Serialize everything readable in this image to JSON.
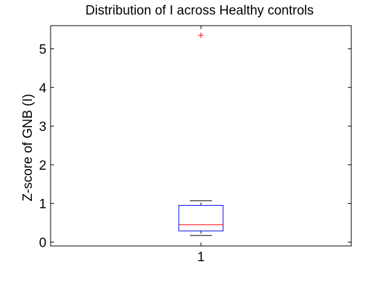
{
  "chart_data": {
    "type": "box",
    "title": "Distribution of I across Healthy controls",
    "ylabel": "Z-score of GNB (I)",
    "xlabel": "",
    "categories": [
      "1"
    ],
    "ylim": [
      -0.1,
      5.6
    ],
    "yticks": [
      0,
      1,
      2,
      3,
      4,
      5
    ],
    "box": {
      "whisker_low": 0.17,
      "q1": 0.29,
      "median": 0.45,
      "q3": 0.95,
      "whisker_high": 1.07
    },
    "outliers": [
      5.35
    ],
    "colors": {
      "box": "#0000ff",
      "median": "#ff0000",
      "outlier": "#ff0000",
      "whisker": "#000000"
    }
  }
}
